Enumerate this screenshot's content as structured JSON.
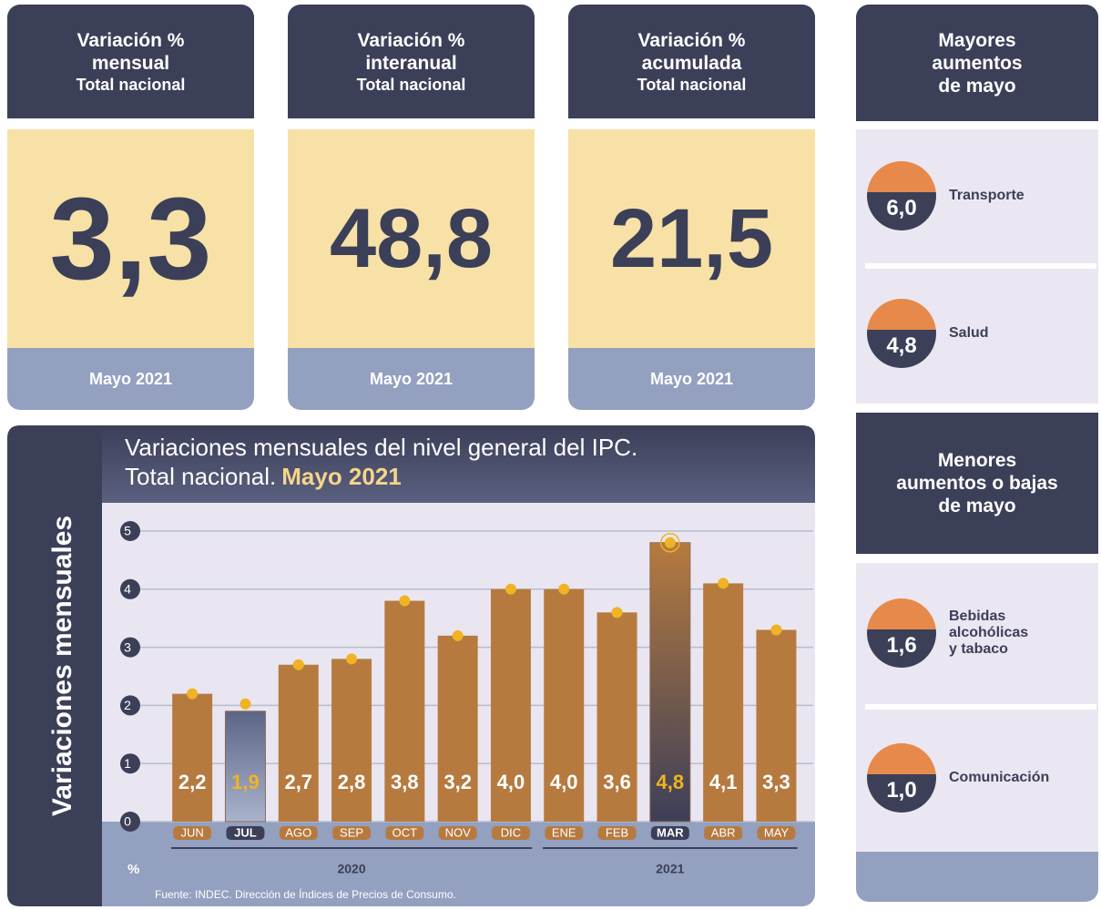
{
  "cards": [
    {
      "title_lines": [
        "Variación %",
        "mensual"
      ],
      "subtitle": "Total nacional",
      "value": "3,3",
      "period": "Mayo 2021"
    },
    {
      "title_lines": [
        "Variación %",
        "interanual"
      ],
      "subtitle": "Total nacional",
      "value": "48,8",
      "period": "Mayo 2021"
    },
    {
      "title_lines": [
        "Variación %",
        "acumulada"
      ],
      "subtitle": "Total nacional",
      "value": "21,5",
      "period": "Mayo 2021"
    }
  ],
  "highest": {
    "title_lines": [
      "Mayores",
      "aumentos",
      "de mayo"
    ],
    "items": [
      {
        "value": "6,0",
        "label_lines": [
          "Transporte"
        ]
      },
      {
        "value": "4,8",
        "label_lines": [
          "Salud"
        ]
      }
    ]
  },
  "lowest": {
    "title_lines": [
      "Menores",
      "aumentos o bajas",
      "de mayo"
    ],
    "items": [
      {
        "value": "1,6",
        "label_lines": [
          "Bebidas",
          "alcohólicas",
          "y tabaco"
        ]
      },
      {
        "value": "1,0",
        "label_lines": [
          "Comunicación"
        ]
      }
    ]
  },
  "side_label": "Variaciones mensuales",
  "chart_data": {
    "type": "bar",
    "title": "Variaciones mensuales del nivel general del IPC.",
    "title_line2": "Total nacional.",
    "title_highlight": "Mayo 2021",
    "categories": [
      "JUN",
      "JUL",
      "AGO",
      "SEP",
      "OCT",
      "NOV",
      "DIC",
      "ENE",
      "FEB",
      "MAR",
      "ABR",
      "MAY"
    ],
    "values": [
      2.2,
      1.9,
      2.7,
      2.8,
      3.8,
      3.2,
      4.0,
      4.0,
      3.6,
      4.8,
      4.1,
      3.3
    ],
    "value_labels": [
      "2,2",
      "1,9",
      "2,7",
      "2,8",
      "3,8",
      "3,2",
      "4,0",
      "4,0",
      "3,6",
      "4,8",
      "4,1",
      "3,3"
    ],
    "highlight": [
      1,
      9
    ],
    "color": "#b67a3f",
    "dot_color": "#f0b323",
    "ylim": [
      0,
      5
    ],
    "yticks": [
      0,
      1,
      2,
      3,
      4,
      5
    ],
    "grid": true,
    "y_unit": "%",
    "x_groups": [
      {
        "label": "2020",
        "count": 7
      },
      {
        "label": "2021",
        "count": 5
      }
    ],
    "source": "Fuente: INDEC. Dirección de Índices de Precios de Consumo."
  }
}
